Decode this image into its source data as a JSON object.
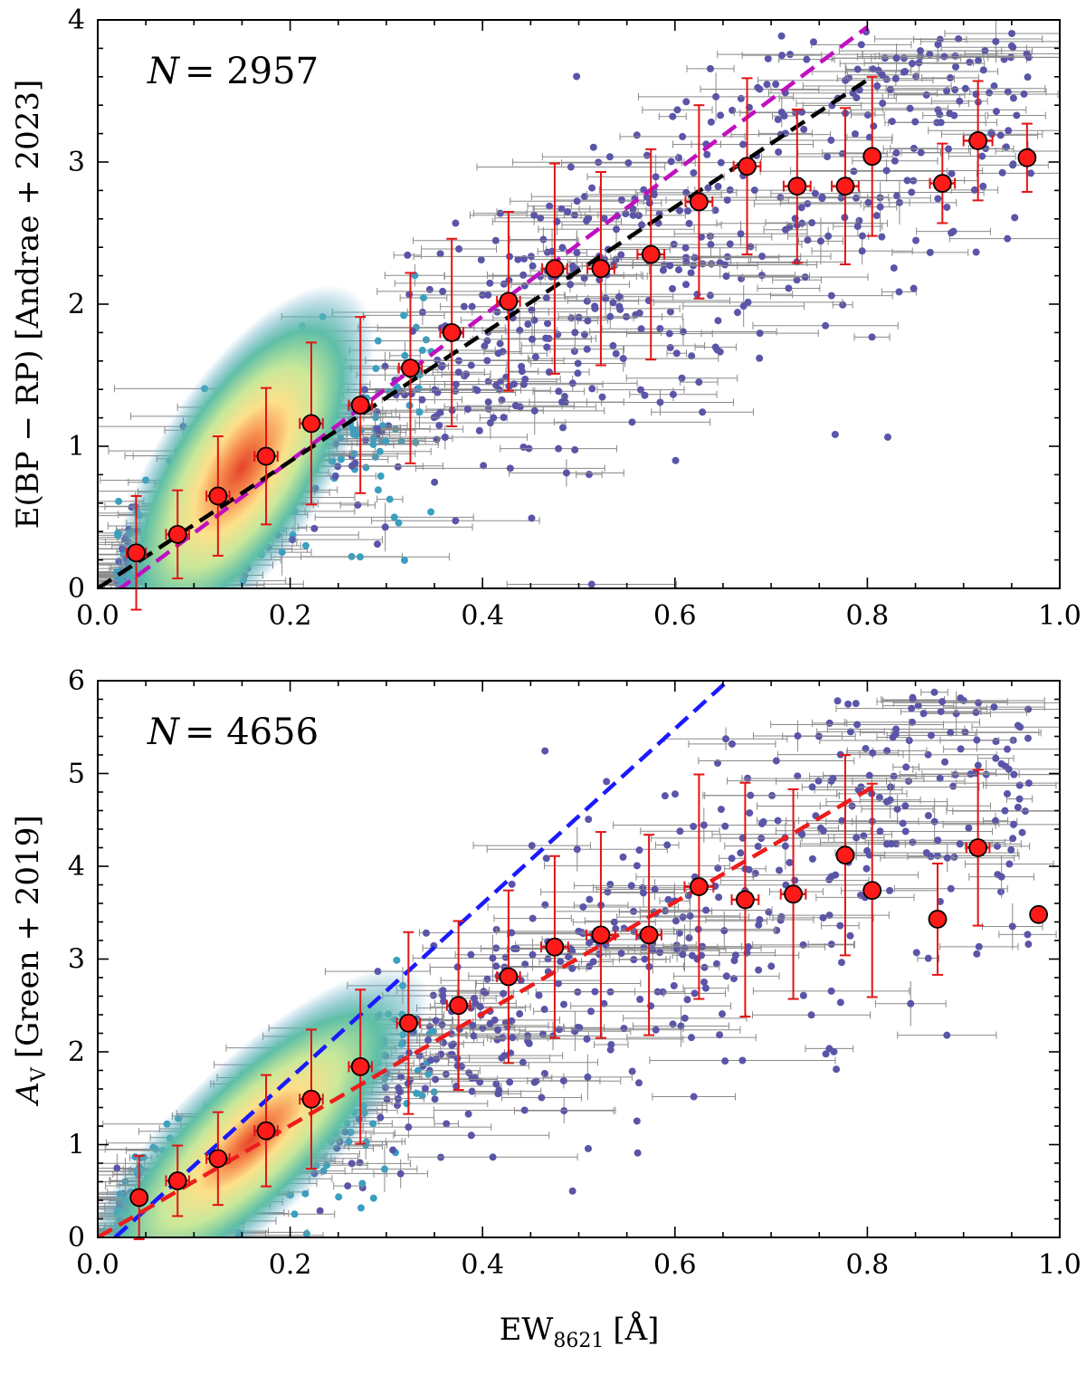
{
  "figure": {
    "xlabel_main": "EW",
    "xlabel_sub": "8621",
    "xlabel_unit": "[Å]"
  },
  "colors": {
    "scatter_low_density": "#5a55a8",
    "scatter_mid_density": "#3a9fc0",
    "errorbar_scatter": "#8a8a8a",
    "binned_fill": "#ff1a1a",
    "binned_errorbar": "#e31414",
    "top_fit_magenta": "#c010c0",
    "top_fit_black": "#000000",
    "bottom_fit_blue": "#1a1aff",
    "bottom_fit_red": "#ee1c1c"
  },
  "chart_data": [
    {
      "type": "scatter",
      "panel": "top",
      "ylabel": "E(BP − RP) [Andrae + 2023]",
      "n_label_var": "N",
      "n_label_value": "= 2957",
      "xlim": [
        0.0,
        1.0
      ],
      "ylim": [
        0,
        4
      ],
      "x_ticks": [
        "0.0",
        "0.2",
        "0.4",
        "0.6",
        "0.8",
        "1.0"
      ],
      "y_ticks": [
        "0",
        "1",
        "2",
        "3",
        "4"
      ],
      "binned_x": [
        0.04,
        0.083,
        0.125,
        0.175,
        0.222,
        0.273,
        0.325,
        0.368,
        0.427,
        0.475,
        0.523,
        0.575,
        0.625,
        0.675,
        0.727,
        0.777,
        0.805,
        0.878,
        0.915,
        0.966
      ],
      "binned_y": [
        0.25,
        0.38,
        0.65,
        0.93,
        1.16,
        1.29,
        1.55,
        1.8,
        2.02,
        2.25,
        2.25,
        2.35,
        2.72,
        2.97,
        2.83,
        2.83,
        3.04,
        2.85,
        3.15,
        3.03
      ],
      "binned_yerr": [
        0.4,
        0.31,
        0.42,
        0.48,
        0.57,
        0.62,
        0.67,
        0.66,
        0.63,
        0.74,
        0.68,
        0.74,
        0.68,
        0.62,
        0.54,
        0.55,
        0.56,
        0.28,
        0.42,
        0.24
      ],
      "binned_xerr": [
        0.01,
        0.012,
        0.012,
        0.012,
        0.012,
        0.012,
        0.012,
        0.012,
        0.012,
        0.013,
        0.014,
        0.014,
        0.014,
        0.014,
        0.014,
        0.014,
        0.006,
        0.013,
        0.015,
        0.006
      ],
      "fit_lines": [
        {
          "name": "magenta dashed fit",
          "color": "magenta",
          "x": [
            0.0,
            0.8
          ],
          "y": [
            -0.12,
            3.95
          ]
        },
        {
          "name": "black dashed fit",
          "color": "black",
          "x": [
            0.0,
            0.805
          ],
          "y": [
            0.0,
            3.6
          ]
        }
      ]
    },
    {
      "type": "scatter",
      "panel": "bottom",
      "ylabel_main": "A",
      "ylabel_sub": "V",
      "ylabel_rest": "[Green + 2019]",
      "n_label_var": "N",
      "n_label_value": "= 4656",
      "xlim": [
        0.0,
        1.0
      ],
      "ylim": [
        0,
        6
      ],
      "x_ticks": [
        "0.0",
        "0.2",
        "0.4",
        "0.6",
        "0.8",
        "1.0"
      ],
      "y_ticks": [
        "0",
        "1",
        "2",
        "3",
        "4",
        "5",
        "6"
      ],
      "binned_x": [
        0.043,
        0.083,
        0.125,
        0.175,
        0.222,
        0.273,
        0.323,
        0.375,
        0.427,
        0.475,
        0.523,
        0.573,
        0.625,
        0.673,
        0.723,
        0.777,
        0.805,
        0.873,
        0.915,
        0.978
      ],
      "binned_y": [
        0.43,
        0.61,
        0.85,
        1.15,
        1.49,
        1.84,
        2.31,
        2.5,
        2.81,
        3.13,
        3.26,
        3.26,
        3.78,
        3.64,
        3.7,
        4.12,
        3.74,
        3.43,
        4.2,
        3.48
      ],
      "binned_yerr": [
        0.45,
        0.38,
        0.5,
        0.6,
        0.75,
        0.83,
        0.98,
        0.91,
        0.93,
        0.98,
        1.11,
        1.08,
        1.21,
        1.26,
        1.13,
        1.08,
        1.15,
        0.6,
        0.84,
        0.0
      ],
      "binned_xerr": [
        0.006,
        0.012,
        0.012,
        0.012,
        0.012,
        0.012,
        0.012,
        0.012,
        0.012,
        0.014,
        0.015,
        0.013,
        0.015,
        0.014,
        0.013,
        0.007,
        0.007,
        0.006,
        0.012,
        0.0
      ],
      "fit_lines": [
        {
          "name": "blue dashed fit",
          "color": "blue",
          "x": [
            0.018,
            0.655
          ],
          "y": [
            0.0,
            6.0
          ]
        },
        {
          "name": "red dashed fit",
          "color": "red",
          "x": [
            0.0,
            0.805
          ],
          "y": [
            0.0,
            4.85
          ]
        }
      ]
    }
  ]
}
